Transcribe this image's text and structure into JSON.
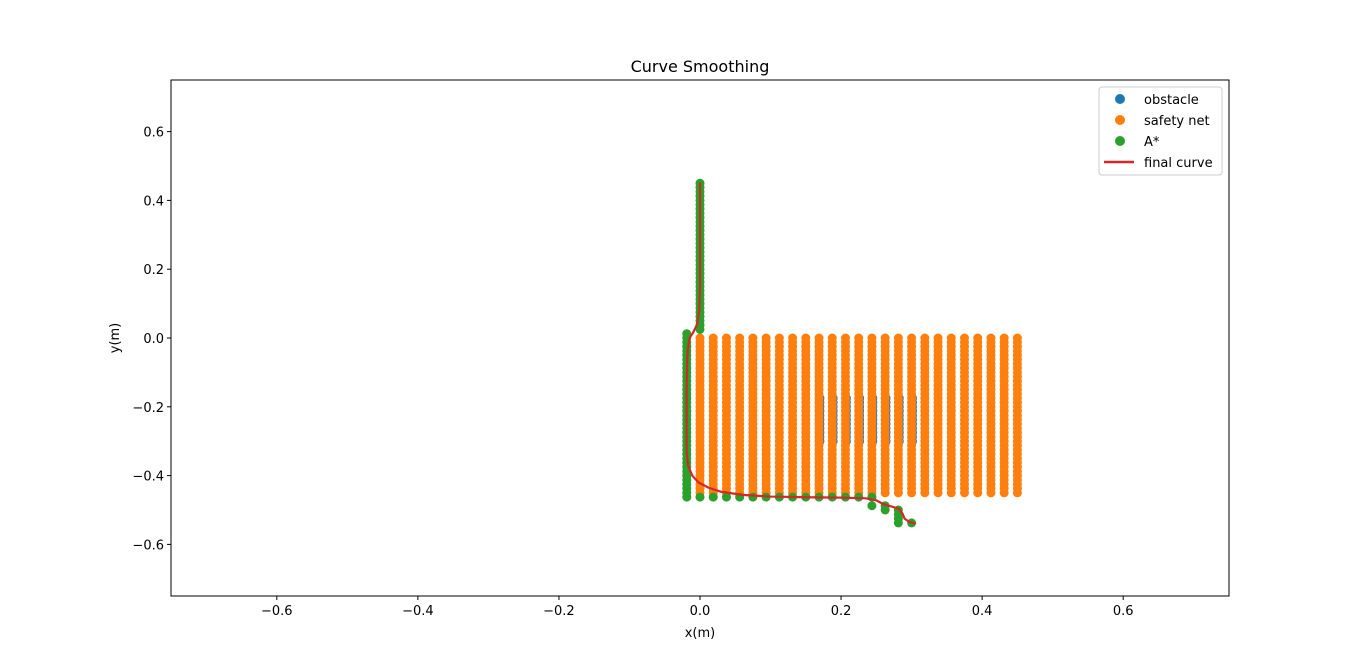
{
  "chart_data": {
    "type": "scatter",
    "title": "Curve Smoothing",
    "xlabel": "x(m)",
    "ylabel": "y(m)",
    "xlim": [
      -0.75,
      0.75
    ],
    "ylim": [
      -0.75,
      0.75
    ],
    "xticks": [
      -0.6,
      -0.4,
      -0.2,
      0.0,
      0.2,
      0.4,
      0.6
    ],
    "yticks": [
      -0.6,
      -0.4,
      -0.2,
      0.0,
      0.2,
      0.4,
      0.6
    ],
    "xtick_labels": [
      "−0.6",
      "−0.4",
      "−0.2",
      "0.0",
      "0.2",
      "0.4",
      "0.6"
    ],
    "ytick_labels": [
      "−0.6",
      "−0.4",
      "−0.2",
      "0.0",
      "0.2",
      "0.4",
      "0.6"
    ],
    "grid": false,
    "legend_position": "top-right",
    "series": [
      {
        "name": "obstacle",
        "kind": "scatter",
        "color": "#1f77b4",
        "grid_x": {
          "start": 0.17,
          "end": 0.3,
          "step": 0.01875
        },
        "grid_y": {
          "start": -0.3,
          "end": -0.17,
          "step": 0.0125
        }
      },
      {
        "name": "safety net",
        "kind": "scatter",
        "color": "#ff7f0e",
        "grid_x": {
          "start": 0.0,
          "end": 0.45,
          "step": 0.01875
        },
        "grid_y": {
          "start": -0.45,
          "end": 0.0,
          "step": 0.0125
        }
      },
      {
        "name": "A*",
        "kind": "scatter",
        "color": "#2ca02c",
        "points": [
          [
            0.0,
            0.45
          ],
          [
            0.0,
            0.4375
          ],
          [
            0.0,
            0.425
          ],
          [
            0.0,
            0.4125
          ],
          [
            0.0,
            0.4
          ],
          [
            0.0,
            0.3875
          ],
          [
            0.0,
            0.375
          ],
          [
            0.0,
            0.3625
          ],
          [
            0.0,
            0.35
          ],
          [
            0.0,
            0.3375
          ],
          [
            0.0,
            0.325
          ],
          [
            0.0,
            0.3125
          ],
          [
            0.0,
            0.3
          ],
          [
            0.0,
            0.2875
          ],
          [
            0.0,
            0.275
          ],
          [
            0.0,
            0.2625
          ],
          [
            0.0,
            0.25
          ],
          [
            0.0,
            0.2375
          ],
          [
            0.0,
            0.225
          ],
          [
            0.0,
            0.2125
          ],
          [
            0.0,
            0.2
          ],
          [
            0.0,
            0.1875
          ],
          [
            0.0,
            0.175
          ],
          [
            0.0,
            0.1625
          ],
          [
            0.0,
            0.15
          ],
          [
            0.0,
            0.1375
          ],
          [
            0.0,
            0.125
          ],
          [
            0.0,
            0.1125
          ],
          [
            0.0,
            0.1
          ],
          [
            0.0,
            0.0875
          ],
          [
            0.0,
            0.075
          ],
          [
            0.0,
            0.0625
          ],
          [
            0.0,
            0.05
          ],
          [
            0.0,
            0.0375
          ],
          [
            0.0,
            0.025
          ],
          [
            -0.01875,
            0.0125
          ],
          [
            -0.01875,
            0.0
          ],
          [
            -0.01875,
            -0.0125
          ],
          [
            -0.01875,
            -0.025
          ],
          [
            -0.01875,
            -0.0375
          ],
          [
            -0.01875,
            -0.05
          ],
          [
            -0.01875,
            -0.0625
          ],
          [
            -0.01875,
            -0.075
          ],
          [
            -0.01875,
            -0.0875
          ],
          [
            -0.01875,
            -0.1
          ],
          [
            -0.01875,
            -0.1125
          ],
          [
            -0.01875,
            -0.125
          ],
          [
            -0.01875,
            -0.1375
          ],
          [
            -0.01875,
            -0.15
          ],
          [
            -0.01875,
            -0.1625
          ],
          [
            -0.01875,
            -0.175
          ],
          [
            -0.01875,
            -0.1875
          ],
          [
            -0.01875,
            -0.2
          ],
          [
            -0.01875,
            -0.2125
          ],
          [
            -0.01875,
            -0.225
          ],
          [
            -0.01875,
            -0.2375
          ],
          [
            -0.01875,
            -0.25
          ],
          [
            -0.01875,
            -0.2625
          ],
          [
            -0.01875,
            -0.275
          ],
          [
            -0.01875,
            -0.2875
          ],
          [
            -0.01875,
            -0.3
          ],
          [
            -0.01875,
            -0.3125
          ],
          [
            -0.01875,
            -0.325
          ],
          [
            -0.01875,
            -0.3375
          ],
          [
            -0.01875,
            -0.35
          ],
          [
            -0.01875,
            -0.3625
          ],
          [
            -0.01875,
            -0.375
          ],
          [
            -0.01875,
            -0.3875
          ],
          [
            -0.01875,
            -0.4
          ],
          [
            -0.01875,
            -0.4125
          ],
          [
            -0.01875,
            -0.425
          ],
          [
            -0.01875,
            -0.4375
          ],
          [
            -0.01875,
            -0.45
          ],
          [
            -0.01875,
            -0.4625
          ],
          [
            0.0,
            -0.4625
          ],
          [
            0.01875,
            -0.4625
          ],
          [
            0.0375,
            -0.4625
          ],
          [
            0.05625,
            -0.4625
          ],
          [
            0.075,
            -0.4625
          ],
          [
            0.09375,
            -0.4625
          ],
          [
            0.1125,
            -0.4625
          ],
          [
            0.13125,
            -0.4625
          ],
          [
            0.15,
            -0.4625
          ],
          [
            0.16875,
            -0.4625
          ],
          [
            0.1875,
            -0.4625
          ],
          [
            0.20625,
            -0.4625
          ],
          [
            0.225,
            -0.4625
          ],
          [
            0.24375,
            -0.4625
          ],
          [
            0.24375,
            -0.4875
          ],
          [
            0.2625,
            -0.4875
          ],
          [
            0.2625,
            -0.5
          ],
          [
            0.28125,
            -0.5
          ],
          [
            0.28125,
            -0.5125
          ],
          [
            0.28125,
            -0.525
          ],
          [
            0.28125,
            -0.5375
          ],
          [
            0.3,
            -0.5375
          ]
        ]
      },
      {
        "name": "final curve",
        "kind": "line",
        "color": "#d62728",
        "points": [
          [
            0.0,
            0.45
          ],
          [
            0.0,
            0.3
          ],
          [
            0.0,
            0.15
          ],
          [
            -0.001,
            0.08
          ],
          [
            -0.004,
            0.04
          ],
          [
            -0.01,
            0.015
          ],
          [
            -0.015,
            0.0
          ],
          [
            -0.018,
            -0.05
          ],
          [
            -0.019,
            -0.15
          ],
          [
            -0.019,
            -0.25
          ],
          [
            -0.019,
            -0.33
          ],
          [
            -0.017,
            -0.37
          ],
          [
            -0.011,
            -0.4
          ],
          [
            -0.002,
            -0.42
          ],
          [
            0.012,
            -0.435
          ],
          [
            0.03,
            -0.447
          ],
          [
            0.06,
            -0.456
          ],
          [
            0.1,
            -0.461
          ],
          [
            0.15,
            -0.463
          ],
          [
            0.2,
            -0.464
          ],
          [
            0.235,
            -0.466
          ],
          [
            0.25,
            -0.472
          ],
          [
            0.262,
            -0.485
          ],
          [
            0.272,
            -0.49
          ],
          [
            0.282,
            -0.497
          ],
          [
            0.287,
            -0.51
          ],
          [
            0.29,
            -0.525
          ],
          [
            0.297,
            -0.535
          ],
          [
            0.305,
            -0.539
          ]
        ]
      }
    ]
  }
}
